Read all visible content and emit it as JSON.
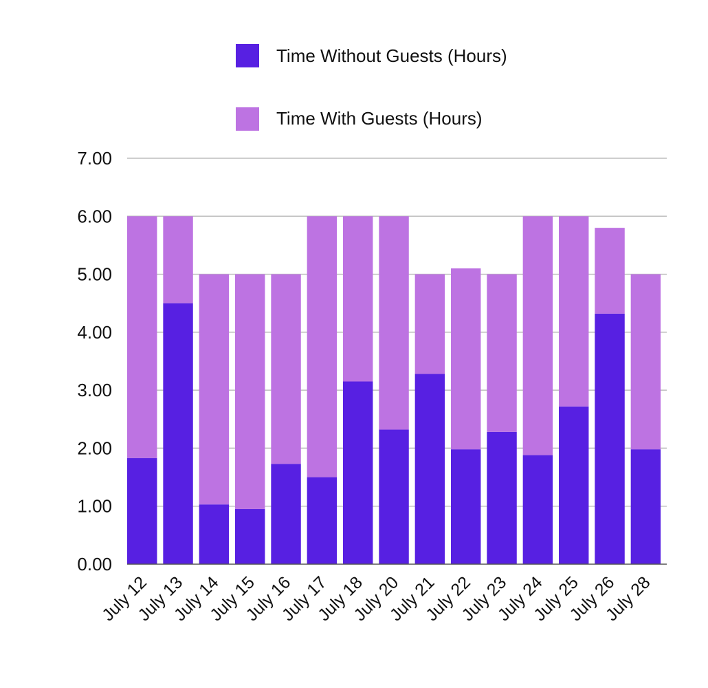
{
  "chart_data": {
    "type": "bar",
    "stacked": true,
    "title": "",
    "xlabel": "",
    "ylabel": "",
    "ylim": [
      0,
      7
    ],
    "yticks": [
      "0.00",
      "1.00",
      "2.00",
      "3.00",
      "4.00",
      "5.00",
      "6.00",
      "7.00"
    ],
    "grid": true,
    "legend_position": "top",
    "categories": [
      "July 12",
      "July 13",
      "July 14",
      "July 15",
      "July 16",
      "July 17",
      "July 18",
      "July 20",
      "July 21",
      "July 22",
      "July 23",
      "July 24",
      "July 25",
      "July 26",
      "July 28"
    ],
    "series": [
      {
        "name": "Time Without Guests (Hours)",
        "color": "#5720e2",
        "values": [
          1.83,
          4.5,
          1.03,
          0.95,
          1.73,
          1.5,
          3.15,
          2.32,
          3.28,
          1.98,
          2.28,
          1.88,
          2.72,
          4.32,
          1.98
        ]
      },
      {
        "name": "Time With Guests (Hours)",
        "color": "#bd73e2",
        "values": [
          4.17,
          1.5,
          3.97,
          4.05,
          3.27,
          4.5,
          2.85,
          3.68,
          1.72,
          3.12,
          2.72,
          4.12,
          3.28,
          1.48,
          3.02
        ]
      }
    ]
  }
}
